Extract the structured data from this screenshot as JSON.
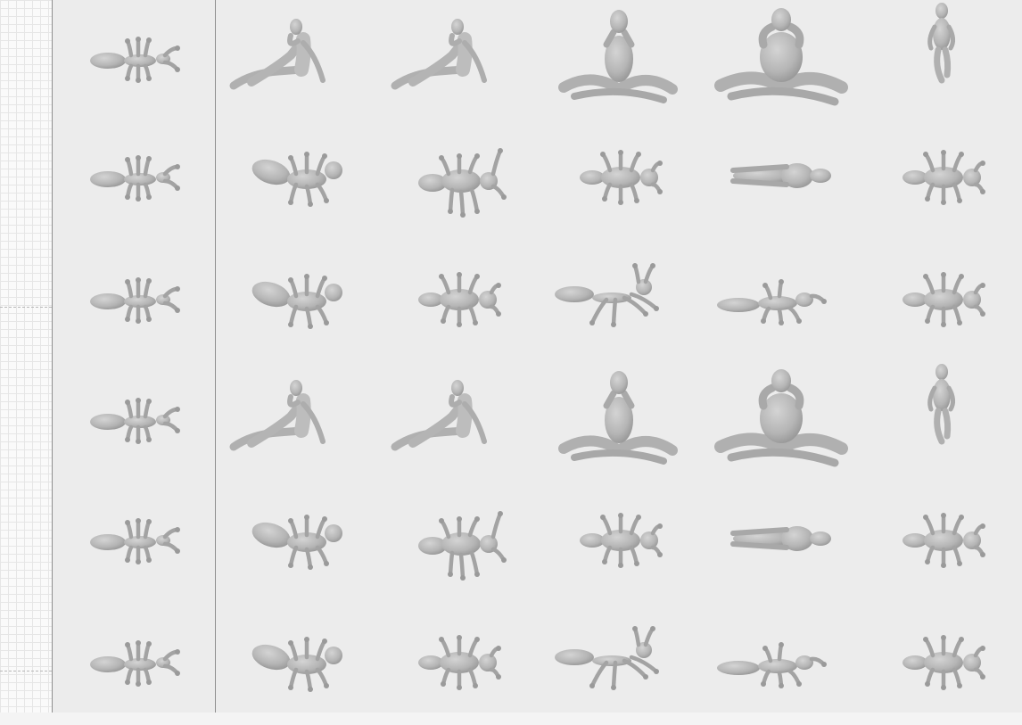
{
  "figure": {
    "background": "#ececec",
    "mesh_color": "#b9b9b9",
    "mesh_shadow": "#8f8f8f",
    "columns": 6,
    "rows": [
      [
        "insect-front",
        "woman-sitting-reclined",
        "woman-sitting-reclined",
        "woman-cross-legged",
        "man-cross-legged",
        "woman-standing"
      ],
      [
        "insect-front",
        "insect-oblique",
        "insect-legs-down",
        "insect-top",
        "human-lying-top",
        "insect-top"
      ],
      [
        "insect-front",
        "insect-oblique",
        "insect-top",
        "insect-stretched",
        "insect-long",
        "insect-top"
      ],
      [
        "insect-front",
        "woman-sitting-reclined",
        "woman-sitting-reclined",
        "woman-cross-legged",
        "man-cross-legged",
        "woman-standing"
      ],
      [
        "insect-front",
        "insect-oblique",
        "insect-legs-down",
        "insect-top",
        "human-lying-top",
        "insect-top"
      ],
      [
        "insect-front",
        "insect-oblique",
        "insect-top",
        "insect-stretched",
        "insect-long",
        "insect-top"
      ]
    ]
  }
}
